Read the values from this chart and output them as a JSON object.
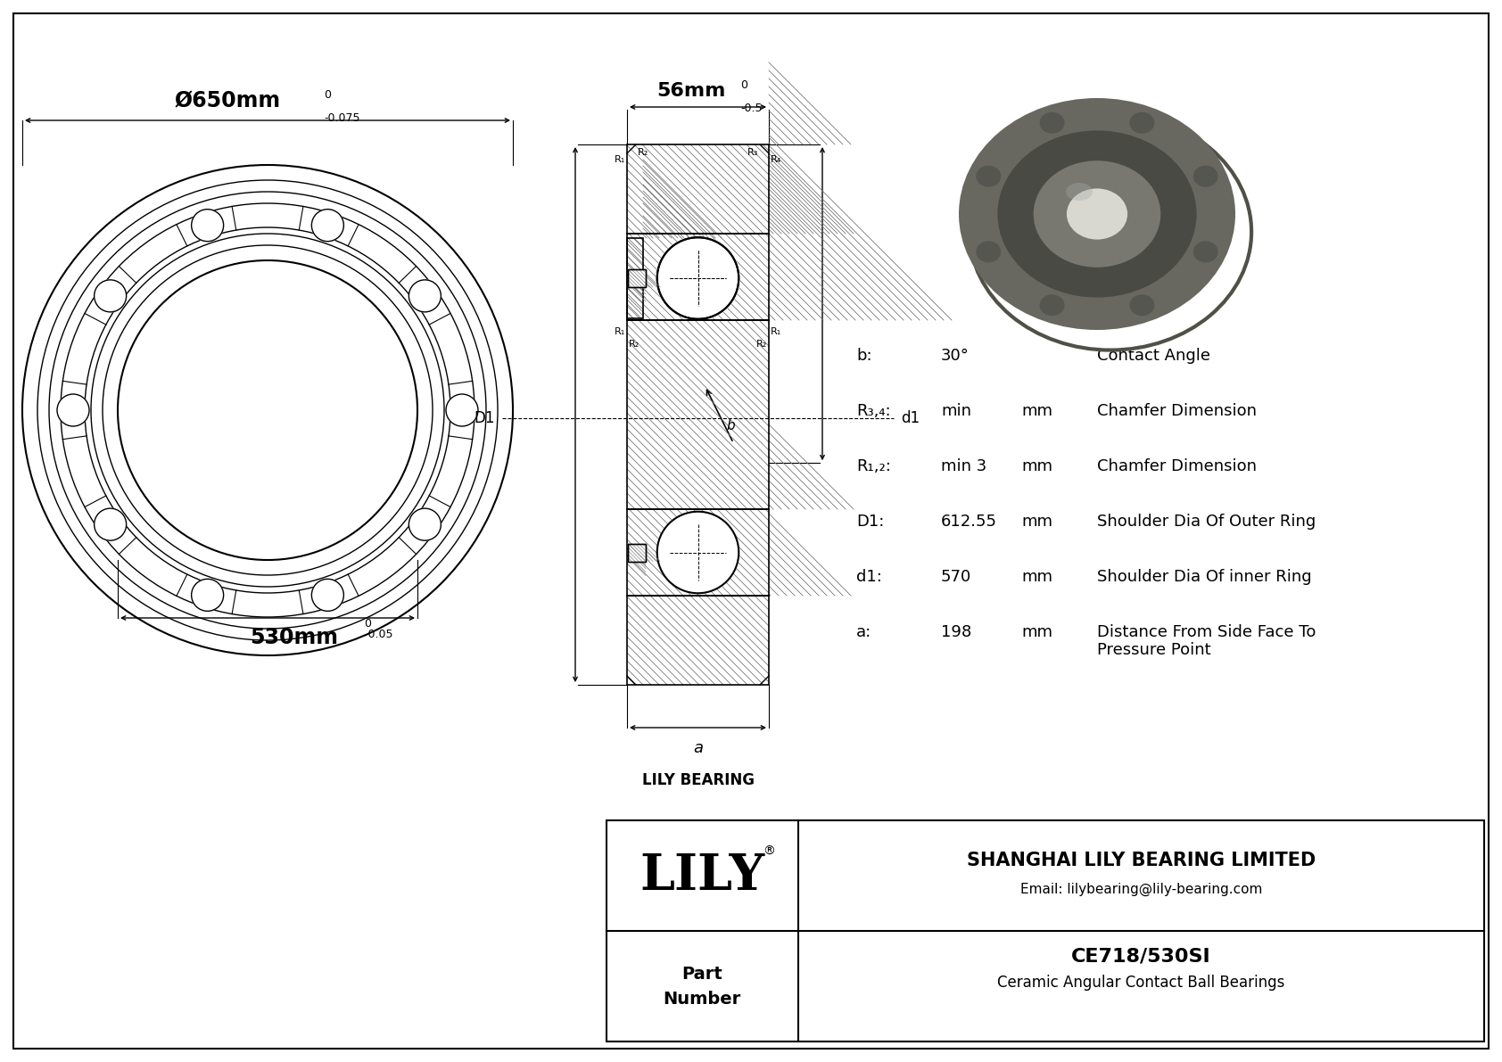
{
  "outer_diameter_label": "Ø650mm",
  "outer_diameter_tol_upper": "0",
  "outer_diameter_tol": "-0.075",
  "inner_diameter_label": "530mm",
  "inner_diameter_tol_upper": "0",
  "inner_diameter_tol": "-0.05",
  "width_label": "56mm",
  "width_tol_upper": "0",
  "width_tol": "-0.5",
  "param_rows": [
    {
      "label": "b:",
      "value": "30°",
      "unit": "",
      "desc": "Contact Angle"
    },
    {
      "label": "R₃,₄:",
      "value": "min",
      "unit": "mm",
      "desc": "Chamfer Dimension"
    },
    {
      "label": "R₁,₂:",
      "value": "min 3",
      "unit": "mm",
      "desc": "Chamfer Dimension"
    },
    {
      "label": "D1:",
      "value": "612.55",
      "unit": "mm",
      "desc": "Shoulder Dia Of Outer Ring"
    },
    {
      "label": "d1:",
      "value": "570",
      "unit": "mm",
      "desc": "Shoulder Dia Of inner Ring"
    },
    {
      "label": "a:",
      "value": "198",
      "unit": "mm",
      "desc": "Distance From Side Face To\nPressure Point"
    }
  ],
  "company": "SHANGHAI LILY BEARING LIMITED",
  "email": "Email: lilybearing@lily-bearing.com",
  "part_number": "CE718/530SI",
  "part_desc": "Ceramic Angular Contact Ball Bearings",
  "logo": "LILY",
  "lily_bearing_label": "LILY BEARING",
  "bg_color": "#ffffff",
  "lc": "#000000"
}
